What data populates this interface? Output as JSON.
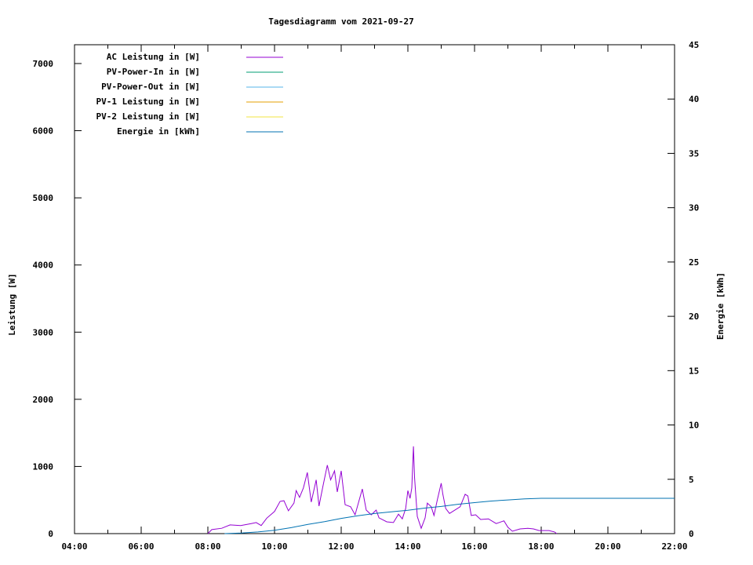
{
  "chart_data": {
    "type": "line",
    "title": "Tagesdiagramm vom 2021-09-27",
    "ylabel": "Leistung [W]",
    "y2label": "Energie [kWh]",
    "xlim": [
      "04:00",
      "22:00"
    ],
    "ylim": [
      0,
      7280
    ],
    "y2lim": [
      0,
      45
    ],
    "xticks": [
      "04:00",
      "06:00",
      "08:00",
      "10:00",
      "12:00",
      "14:00",
      "16:00",
      "18:00",
      "20:00",
      "22:00"
    ],
    "yticks": [
      0,
      1000,
      2000,
      3000,
      4000,
      5000,
      6000,
      7000
    ],
    "y2ticks": [
      0,
      5,
      10,
      15,
      20,
      25,
      30,
      35,
      40,
      45
    ],
    "grid": false,
    "legend": "top-left",
    "series": [
      {
        "name": "AC Leistung in [W]",
        "axis": "y",
        "color": "#9400d3",
        "x": [
          "08:00",
          "08:07",
          "08:25",
          "08:40",
          "08:59",
          "09:18",
          "09:27",
          "09:36",
          "09:46",
          "10:00",
          "10:10",
          "10:17",
          "10:25",
          "10:35",
          "10:39",
          "10:45",
          "10:52",
          "10:59",
          "11:06",
          "11:15",
          "11:20",
          "11:27",
          "11:35",
          "11:41",
          "11:48",
          "11:53",
          "12:00",
          "12:07",
          "12:17",
          "12:25",
          "12:38",
          "12:45",
          "12:54",
          "13:03",
          "13:08",
          "13:22",
          "13:34",
          "13:43",
          "13:50",
          "13:56",
          "14:00",
          "14:04",
          "14:07",
          "14:10",
          "14:12",
          "14:17",
          "14:24",
          "14:31",
          "14:35",
          "14:42",
          "14:47",
          "14:53",
          "15:00",
          "15:03",
          "15:08",
          "15:15",
          "15:34",
          "15:43",
          "15:48",
          "15:54",
          "16:02",
          "16:11",
          "16:25",
          "16:39",
          "16:53",
          "17:00",
          "17:08",
          "17:22",
          "17:36",
          "17:46",
          "17:56",
          "18:14",
          "18:24",
          "18:28"
        ],
        "values": [
          0,
          60,
          80,
          130,
          120,
          150,
          165,
          120,
          230,
          330,
          480,
          490,
          340,
          455,
          640,
          540,
          680,
          910,
          470,
          800,
          410,
          700,
          1020,
          800,
          935,
          620,
          935,
          430,
          400,
          280,
          665,
          350,
          280,
          350,
          235,
          175,
          165,
          290,
          220,
          375,
          640,
          525,
          680,
          1300,
          840,
          255,
          80,
          235,
          455,
          400,
          270,
          500,
          750,
          585,
          375,
          300,
          400,
          585,
          560,
          270,
          280,
          210,
          220,
          150,
          190,
          95,
          35,
          70,
          80,
          70,
          45,
          45,
          25,
          0
        ]
      },
      {
        "name": "PV-Power-In in [W]",
        "axis": "y",
        "color": "#009e73",
        "x": [],
        "values": []
      },
      {
        "name": "PV-Power-Out in [W]",
        "axis": "y",
        "color": "#56b4e9",
        "x": [],
        "values": []
      },
      {
        "name": "PV-1 Leistung in [W]",
        "axis": "y",
        "color": "#e69f00",
        "x": [],
        "values": []
      },
      {
        "name": "PV-2 Leistung in [W]",
        "axis": "y",
        "color": "#f0e442",
        "x": [],
        "values": []
      },
      {
        "name": "Energie in [kWh]",
        "axis": "y2",
        "color": "#0072b2",
        "x": [
          "08:30",
          "09:00",
          "09:30",
          "10:00",
          "10:30",
          "11:00",
          "11:30",
          "12:00",
          "12:30",
          "13:00",
          "13:30",
          "14:00",
          "14:30",
          "15:00",
          "15:30",
          "16:00",
          "16:30",
          "17:00",
          "17:30",
          "18:00",
          "22:00"
        ],
        "values": [
          0.0,
          0.05,
          0.15,
          0.3,
          0.55,
          0.85,
          1.1,
          1.4,
          1.65,
          1.85,
          2.0,
          2.15,
          2.35,
          2.5,
          2.7,
          2.85,
          3.0,
          3.1,
          3.2,
          3.25,
          3.25
        ]
      }
    ]
  }
}
